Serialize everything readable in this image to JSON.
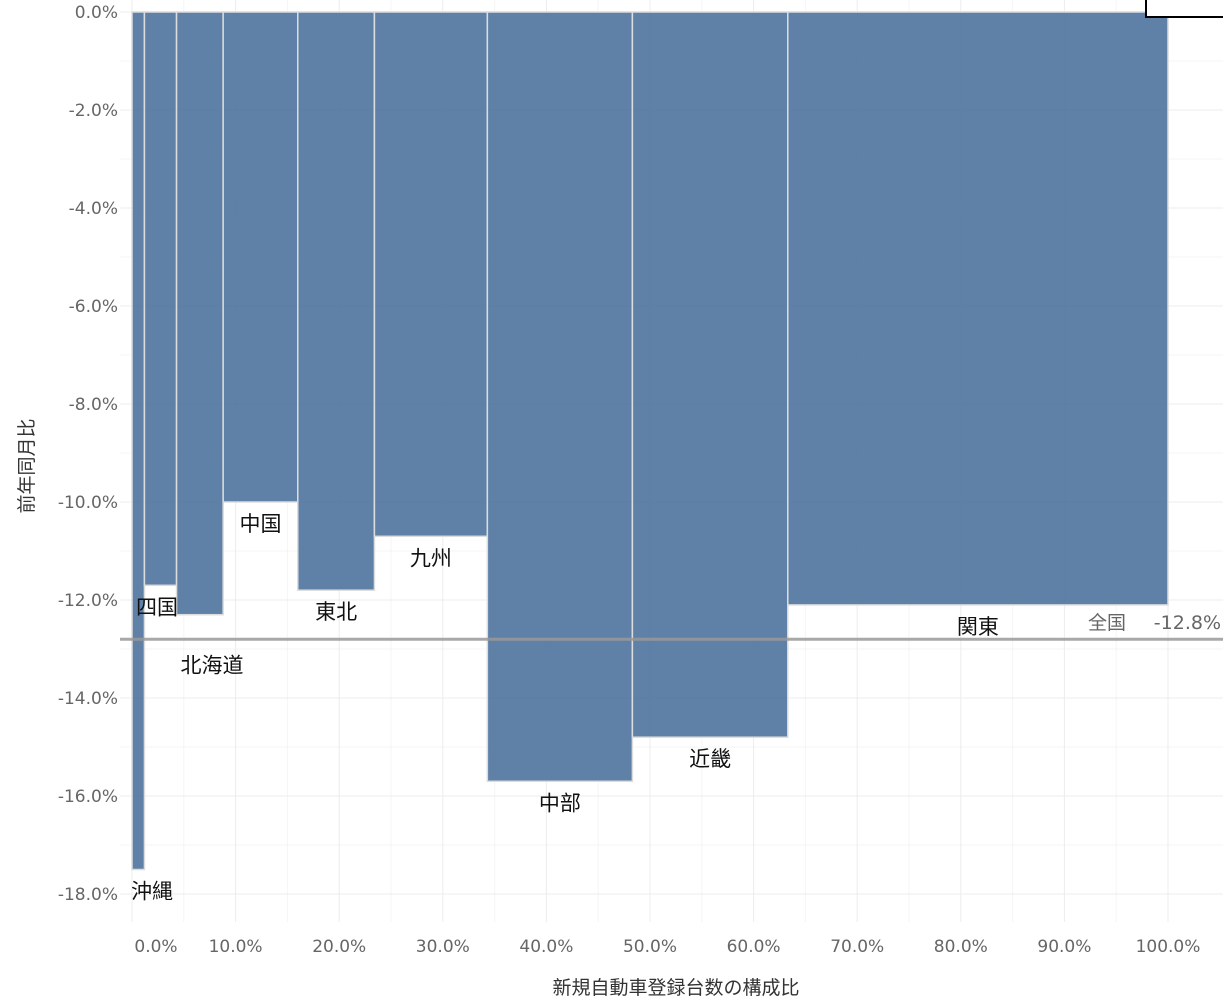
{
  "chart_data": {
    "type": "bar",
    "subtype": "variable-width (mekko) bar chart",
    "xlabel": "新規自動車登録台数の構成比",
    "ylabel": "前年同月比",
    "xlim": [
      -0.01,
      1.045
    ],
    "ylim": [
      -18.75,
      0.2
    ],
    "x_ticks": [
      0,
      0.1,
      0.2,
      0.3,
      0.4,
      0.5,
      0.6,
      0.7,
      0.8,
      0.9,
      1.0
    ],
    "x_tick_labels": [
      "0.0%",
      "10.0%",
      "20.0%",
      "30.0%",
      "40.0%",
      "50.0%",
      "60.0%",
      "70.0%",
      "80.0%",
      "90.0%",
      "100.0%"
    ],
    "y_ticks": [
      0,
      -2,
      -4,
      -6,
      -8,
      -10,
      -12,
      -14,
      -16,
      -18
    ],
    "y_tick_labels": [
      "0.0%",
      "-2.0%",
      "-4.0%",
      "-6.0%",
      "-8.0%",
      "-10.0%",
      "-12.0%",
      "-14.0%",
      "-16.0%",
      "-18.0%"
    ],
    "grid": true,
    "bar_color": "#4f739d",
    "reference_line": {
      "label": "全国",
      "value": -12.8,
      "value_label": "-12.8%",
      "color": "#999999"
    },
    "bars": [
      {
        "region": "沖縄",
        "x_start": 0.0,
        "x_end": 0.012,
        "value": -17.5
      },
      {
        "region": "四国",
        "x_start": 0.012,
        "x_end": 0.043,
        "value": -11.7
      },
      {
        "region": "北海道",
        "x_start": 0.043,
        "x_end": 0.088,
        "value": -12.3
      },
      {
        "region": "中国",
        "x_start": 0.088,
        "x_end": 0.16,
        "value": -10.0
      },
      {
        "region": "東北",
        "x_start": 0.16,
        "x_end": 0.234,
        "value": -11.8
      },
      {
        "region": "九州",
        "x_start": 0.234,
        "x_end": 0.343,
        "value": -10.7
      },
      {
        "region": "中部",
        "x_start": 0.343,
        "x_end": 0.483,
        "value": -15.7
      },
      {
        "region": "近畿",
        "x_start": 0.483,
        "x_end": 0.633,
        "value": -14.8
      },
      {
        "region": "関東",
        "x_start": 0.633,
        "x_end": 1.0,
        "value": -12.1
      }
    ]
  }
}
